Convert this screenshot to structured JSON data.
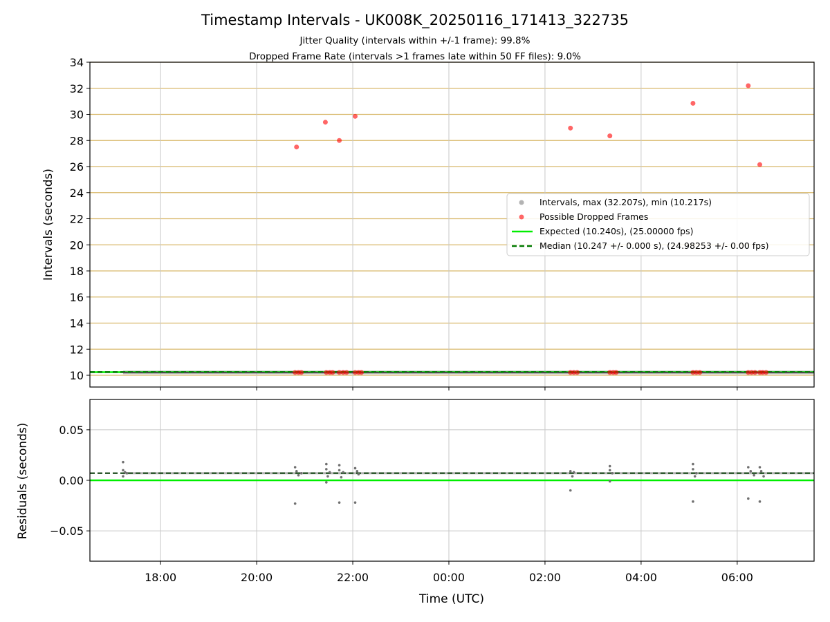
{
  "title": "Timestamp Intervals - UK008K_20250116_171413_322735",
  "subtitle_lines": [
    "Jitter Quality (intervals within +/-1 frame): 99.8%",
    "Dropped Frame Rate (intervals >1 frames late within 50 FF files): 9.0%"
  ],
  "colors": {
    "expected": "#00ee00",
    "median": "#007a00",
    "dropped": "#ff0000",
    "intervals": "#808080",
    "ygrid_top": "#d8b86a",
    "grid": "#c8c8c8"
  },
  "chart_data": [
    {
      "type": "scatter",
      "panel": "intervals",
      "title": "Timestamp Intervals - UK008K_20250116_171413_322735",
      "xlabel": "",
      "ylabel": "Intervals (seconds)",
      "x_unit": "hours since 2025-01-16 00:00 UTC",
      "xlim": [
        16.53,
        31.6
      ],
      "ylim": [
        9.1,
        34
      ],
      "yticks": [
        10,
        12,
        14,
        16,
        18,
        20,
        22,
        24,
        26,
        28,
        30,
        32,
        34
      ],
      "grid": true,
      "legend_position": "right",
      "legend": [
        "Intervals, max (32.207s), min (10.217s)",
        "Possible Dropped Frames",
        "Expected (10.240s), (25.00000 fps)",
        "Median (10.247 +/- 0.000 s), (24.98253 +/- 0.00 fps)"
      ],
      "series": [
        {
          "name": "Possible Dropped Frames",
          "color": "#ff0000",
          "points": [
            [
              20.83,
              27.5
            ],
            [
              21.43,
              29.4
            ],
            [
              21.72,
              28.0
            ],
            [
              22.05,
              29.85
            ],
            [
              26.53,
              28.95
            ],
            [
              27.35,
              28.35
            ],
            [
              29.08,
              30.85
            ],
            [
              30.23,
              32.2
            ],
            [
              30.47,
              26.15
            ],
            [
              20.8,
              10.22
            ],
            [
              20.87,
              10.22
            ],
            [
              20.93,
              10.22
            ],
            [
              21.45,
              10.22
            ],
            [
              21.52,
              10.22
            ],
            [
              21.58,
              10.22
            ],
            [
              21.72,
              10.22
            ],
            [
              21.8,
              10.22
            ],
            [
              21.87,
              10.22
            ],
            [
              22.05,
              10.22
            ],
            [
              22.12,
              10.22
            ],
            [
              22.18,
              10.22
            ],
            [
              26.53,
              10.22
            ],
            [
              26.6,
              10.22
            ],
            [
              26.67,
              10.22
            ],
            [
              27.35,
              10.22
            ],
            [
              27.42,
              10.22
            ],
            [
              27.48,
              10.22
            ],
            [
              29.08,
              10.22
            ],
            [
              29.15,
              10.22
            ],
            [
              29.22,
              10.22
            ],
            [
              30.23,
              10.22
            ],
            [
              30.3,
              10.22
            ],
            [
              30.37,
              10.22
            ],
            [
              30.47,
              10.22
            ],
            [
              30.53,
              10.22
            ],
            [
              30.6,
              10.22
            ]
          ]
        },
        {
          "name": "Expected",
          "color": "#00ee00",
          "y": 10.24
        },
        {
          "name": "Median",
          "color": "#007a00",
          "y": 10.247
        }
      ]
    },
    {
      "type": "scatter",
      "panel": "residuals",
      "xlabel": "Time (UTC)",
      "ylabel": "Residuals (seconds)",
      "x_unit": "hours since 2025-01-16 00:00 UTC",
      "xlim": [
        16.53,
        31.6
      ],
      "ylim": [
        -0.08,
        0.08
      ],
      "yticks": [
        0.05,
        0.0,
        -0.05
      ],
      "ytick_labels": [
        "0.05",
        "0.00",
        "−0.05"
      ],
      "xticks": [
        18,
        20,
        22,
        24,
        26,
        28,
        30
      ],
      "xtick_labels": [
        "18:00",
        "20:00",
        "22:00",
        "00:00",
        "02:00",
        "04:00",
        "06:00"
      ],
      "grid": true,
      "series": [
        {
          "name": "Residuals",
          "color": "#707070",
          "points": [
            [
              17.22,
              0.018
            ],
            [
              17.22,
              0.01
            ],
            [
              17.22,
              0.004
            ],
            [
              17.26,
              0.008
            ],
            [
              17.3,
              0.007
            ],
            [
              20.8,
              0.013
            ],
            [
              20.8,
              -0.023
            ],
            [
              20.83,
              0.009
            ],
            [
              20.87,
              0.005
            ],
            [
              20.93,
              0.007
            ],
            [
              21.45,
              0.016
            ],
            [
              21.45,
              0.011
            ],
            [
              21.45,
              -0.002
            ],
            [
              21.48,
              0.004
            ],
            [
              21.52,
              0.008
            ],
            [
              21.72,
              0.015
            ],
            [
              21.72,
              0.01
            ],
            [
              21.72,
              -0.022
            ],
            [
              21.76,
              0.003
            ],
            [
              21.8,
              0.008
            ],
            [
              22.05,
              0.012
            ],
            [
              22.05,
              -0.022
            ],
            [
              22.09,
              0.009
            ],
            [
              22.12,
              0.006
            ],
            [
              26.53,
              0.009
            ],
            [
              26.53,
              -0.01
            ],
            [
              26.57,
              0.004
            ],
            [
              26.6,
              0.008
            ],
            [
              27.35,
              0.014
            ],
            [
              27.35,
              0.01
            ],
            [
              27.35,
              -0.001
            ],
            [
              27.4,
              0.007
            ],
            [
              29.08,
              0.016
            ],
            [
              29.08,
              0.011
            ],
            [
              29.08,
              -0.021
            ],
            [
              29.12,
              0.004
            ],
            [
              29.15,
              0.007
            ],
            [
              30.23,
              0.013
            ],
            [
              30.23,
              -0.018
            ],
            [
              30.28,
              0.009
            ],
            [
              30.35,
              0.005
            ],
            [
              30.47,
              0.013
            ],
            [
              30.47,
              -0.021
            ],
            [
              30.5,
              0.009
            ],
            [
              30.55,
              0.004
            ]
          ]
        },
        {
          "name": "Expected",
          "color": "#00ee00",
          "y": 0.0
        },
        {
          "name": "Median",
          "color": "#007a00",
          "y": 0.007
        }
      ]
    }
  ]
}
